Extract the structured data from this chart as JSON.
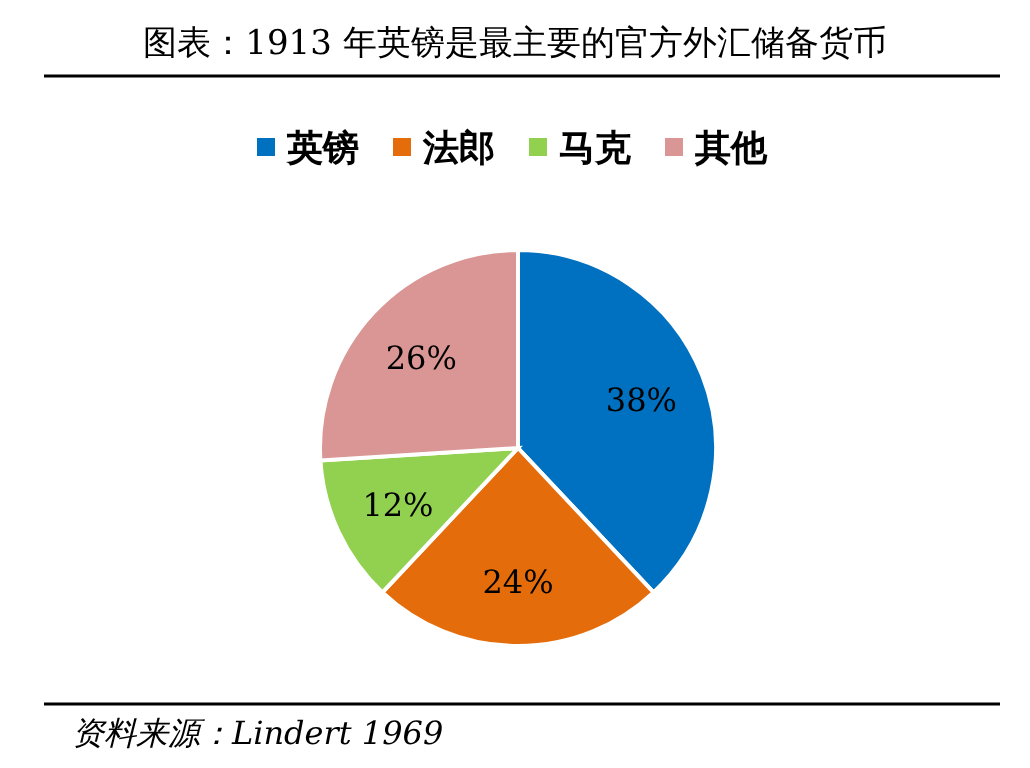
{
  "chart_data": {
    "type": "pie",
    "title": "图表：1913 年英镑是最主要的官方外汇储备货币",
    "categories": [
      "英镑",
      "法郎",
      "马克",
      "其他"
    ],
    "values": [
      38,
      24,
      12,
      26
    ],
    "value_labels": [
      "38%",
      "24%",
      "12%",
      "26%"
    ],
    "colors": [
      "#0070c0",
      "#e46c0a",
      "#92d050",
      "#d99694"
    ],
    "legend": "top",
    "annotations": [
      "资料来源：Lindert 1969"
    ]
  }
}
